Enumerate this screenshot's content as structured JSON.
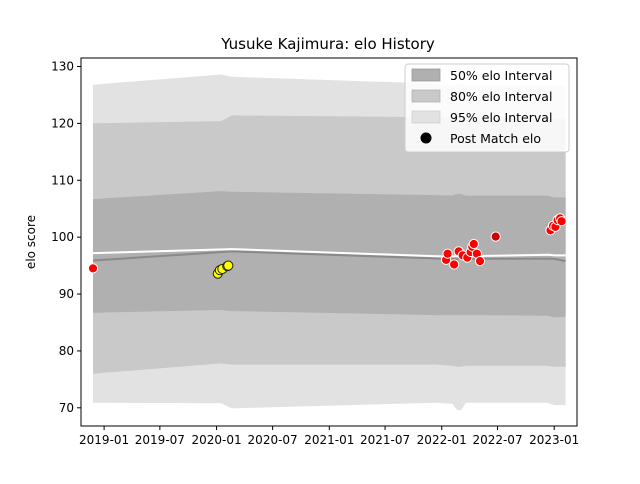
{
  "chart_data": {
    "type": "line",
    "title": "Yusuke Kajimura: elo History",
    "xlabel": "",
    "ylabel": "elo score",
    "xlim": [
      "2018-10-18",
      "2023-03-16"
    ],
    "ylim": [
      66.8,
      131.5
    ],
    "x_ticks": [
      "2019-01-01",
      "2019-07-01",
      "2020-01-01",
      "2020-07-01",
      "2021-01-01",
      "2021-07-01",
      "2022-01-01",
      "2022-07-01",
      "2023-01-01"
    ],
    "x_tick_labels": [
      "2019-01",
      "2019-07",
      "2020-01",
      "2020-07",
      "2021-01",
      "2021-07",
      "2022-01",
      "2022-07",
      "2023-01"
    ],
    "y_ticks": [
      70,
      80,
      90,
      100,
      110,
      120,
      130
    ],
    "y_tick_labels": [
      "70",
      "80",
      "90",
      "100",
      "110",
      "120",
      "130"
    ],
    "grid": false,
    "legend": {
      "placement": "top-right",
      "entries": [
        "50% elo Interval",
        "80% elo Interval",
        "95% elo Interval",
        "Post Match elo"
      ]
    },
    "colors": {
      "band_50": "#b0b0b0",
      "band_80": "#c9c9c9",
      "band_95": "#e2e2e2",
      "mean_line": "#8a8a8a",
      "median_line": "#ffffff",
      "point_red": "#ff0000",
      "point_yellow": "#ffff00",
      "point_dark_red": "#cc0000"
    },
    "bands": {
      "x": [
        "2018-11-26",
        "2020-01-15",
        "2020-02-20",
        "2021-12-10",
        "2022-02-05",
        "2022-02-20",
        "2022-03-05",
        "2022-03-20",
        "2022-12-10",
        "2023-01-01",
        "2023-02-07"
      ],
      "p95_low": [
        70.9,
        70.8,
        69.9,
        70.9,
        70.7,
        69.6,
        69.6,
        70.9,
        70.9,
        70.5,
        70.5
      ],
      "p80_low": [
        76.0,
        77.8,
        77.6,
        77.6,
        77.4,
        77.2,
        77.2,
        77.4,
        77.4,
        77.2,
        77.2
      ],
      "p50_low": [
        86.7,
        87.2,
        87.0,
        86.3,
        86.3,
        86.3,
        86.3,
        86.3,
        86.2,
        85.9,
        86.0
      ],
      "p50_high": [
        106.7,
        108.1,
        108.0,
        107.4,
        107.3,
        107.6,
        107.6,
        107.3,
        107.3,
        107.0,
        107.0
      ],
      "p80_high": [
        120.0,
        120.4,
        121.4,
        121.1,
        121.0,
        121.2,
        121.2,
        121.0,
        121.0,
        120.8,
        120.8
      ],
      "p95_high": [
        126.8,
        128.6,
        128.2,
        127.0,
        126.6,
        126.9,
        126.9,
        126.6,
        126.6,
        126.6,
        126.6
      ]
    },
    "series": [
      {
        "x": [
          "2018-11-26",
          "2020-02-20",
          "2022-01-10",
          "2022-12-15",
          "2023-01-01",
          "2023-02-07"
        ],
        "values": [
          95.9,
          97.5,
          96.2,
          96.2,
          96.2,
          95.8
        ]
      },
      {
        "x": [
          "2018-11-26",
          "2020-02-20",
          "2022-01-10",
          "2022-12-15",
          "2023-01-01",
          "2023-02-07"
        ],
        "values": [
          97.2,
          97.9,
          96.6,
          96.9,
          96.8,
          96.8
        ]
      }
    ],
    "points": [
      {
        "date": "2018-11-26",
        "value": 94.5,
        "color": "#ff0000"
      },
      {
        "date": "2020-01-05",
        "value": 93.6,
        "color": "#ffff00"
      },
      {
        "date": "2020-01-12",
        "value": 94.2,
        "color": "#ffff00"
      },
      {
        "date": "2020-01-20",
        "value": 94.4,
        "color": "#ffff00"
      },
      {
        "date": "2020-02-05",
        "value": 94.9,
        "color": "#ffff00"
      },
      {
        "date": "2020-02-08",
        "value": 95.0,
        "color": "#ffff00"
      },
      {
        "date": "2022-01-15",
        "value": 96.0,
        "color": "#ff0000"
      },
      {
        "date": "2022-01-20",
        "value": 97.1,
        "color": "#ff0000"
      },
      {
        "date": "2022-02-10",
        "value": 95.2,
        "color": "#ff0000"
      },
      {
        "date": "2022-02-25",
        "value": 97.5,
        "color": "#ff0000"
      },
      {
        "date": "2022-03-10",
        "value": 96.8,
        "color": "#ff0000"
      },
      {
        "date": "2022-03-25",
        "value": 96.4,
        "color": "#ff0000"
      },
      {
        "date": "2022-04-05",
        "value": 97.4,
        "color": "#ff0000"
      },
      {
        "date": "2022-04-10",
        "value": 98.3,
        "color": "#ff0000"
      },
      {
        "date": "2022-04-15",
        "value": 98.8,
        "color": "#ff0000"
      },
      {
        "date": "2022-04-25",
        "value": 97.1,
        "color": "#ff0000"
      },
      {
        "date": "2022-05-05",
        "value": 95.8,
        "color": "#ff0000"
      },
      {
        "date": "2022-06-25",
        "value": 100.1,
        "color": "#cc0000"
      },
      {
        "date": "2022-12-20",
        "value": 101.2,
        "color": "#ff0000"
      },
      {
        "date": "2022-12-28",
        "value": 102.0,
        "color": "#ff0000"
      },
      {
        "date": "2023-01-05",
        "value": 101.8,
        "color": "#ff0000"
      },
      {
        "date": "2023-01-12",
        "value": 103.0,
        "color": "#ff0000"
      },
      {
        "date": "2023-01-20",
        "value": 103.3,
        "color": "#ff0000"
      },
      {
        "date": "2023-01-25",
        "value": 102.8,
        "color": "#ff0000"
      }
    ]
  }
}
